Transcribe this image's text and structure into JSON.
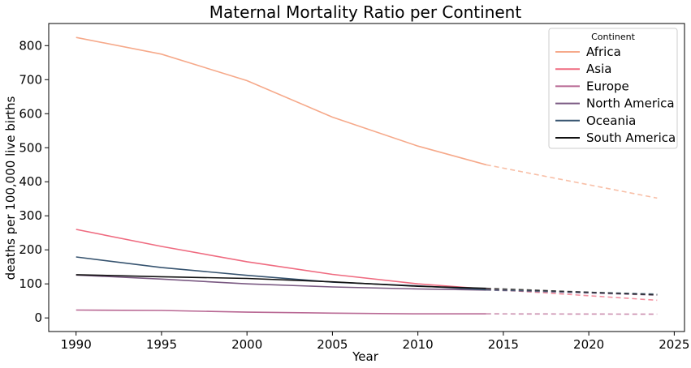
{
  "chart_data": {
    "type": "line",
    "title": "Maternal Mortality Ratio per Continent",
    "xlabel": "Year",
    "ylabel": "deaths per 100,000 live births",
    "xlim": [
      1988.4,
      2025.6
    ],
    "ylim": [
      -40,
      865
    ],
    "x_ticks": [
      "1990",
      "1995",
      "2000",
      "2005",
      "2010",
      "2015",
      "2020",
      "2025"
    ],
    "y_ticks": [
      "0",
      "100",
      "200",
      "300",
      "400",
      "500",
      "600",
      "700",
      "800"
    ],
    "grid": false,
    "legend": {
      "title": "Continent",
      "placement": "top-right"
    },
    "observed_years": [
      1990,
      1995,
      2000,
      2005,
      2010,
      2014
    ],
    "projection_years": [
      2014,
      2024
    ],
    "series": [
      {
        "name": "Africa",
        "color": "#f6a98a",
        "values": [
          824,
          775,
          697,
          590,
          505,
          450
        ],
        "projection": [
          450,
          352
        ]
      },
      {
        "name": "Asia",
        "color": "#ef6b80",
        "values": [
          260,
          210,
          165,
          128,
          100,
          85
        ],
        "projection": [
          85,
          52
        ]
      },
      {
        "name": "Europe",
        "color": "#b86793",
        "values": [
          23,
          22,
          17,
          14,
          12,
          12
        ],
        "projection": [
          12,
          11
        ]
      },
      {
        "name": "North America",
        "color": "#7a5982",
        "values": [
          126,
          114,
          100,
          91,
          85,
          82
        ],
        "projection": [
          82,
          67
        ]
      },
      {
        "name": "Oceania",
        "color": "#36536f",
        "values": [
          179,
          148,
          125,
          105,
          94,
          83
        ],
        "projection": [
          83,
          70
        ]
      },
      {
        "name": "South America",
        "color": "#111111",
        "values": [
          127,
          121,
          116,
          106,
          93,
          87
        ],
        "projection": [
          87,
          68
        ]
      }
    ]
  }
}
